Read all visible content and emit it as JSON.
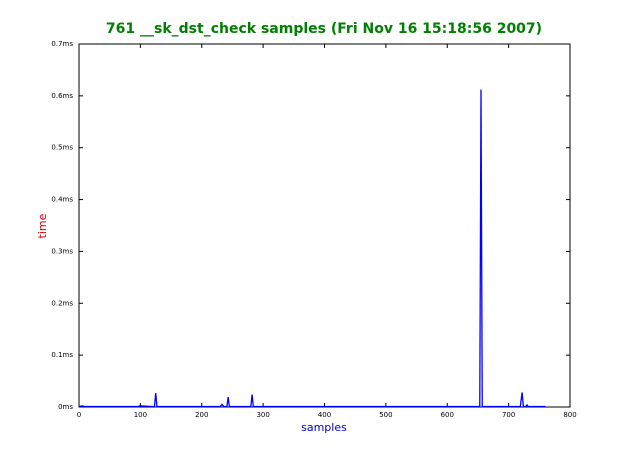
{
  "chart_data": {
    "type": "line",
    "title": "761 __sk_dst_check samples (Fri Nov 16 15:18:56 2007)",
    "x_label": "samples",
    "y_label": "time",
    "x": [
      0,
      5,
      10,
      30,
      60,
      95,
      100,
      120,
      123,
      125,
      127,
      150,
      200,
      230,
      233,
      236,
      241,
      243,
      245,
      260,
      280,
      282,
      284,
      300,
      350,
      400,
      450,
      500,
      550,
      600,
      650,
      653,
      655,
      657,
      660,
      700,
      719,
      722,
      724,
      728,
      730,
      732,
      760
    ],
    "series": [
      {
        "color": "#0000ff",
        "values": [
          0.001,
          0.002,
          0.001,
          0.001,
          0.001,
          0.001,
          0.002,
          0.001,
          0.001,
          0.027,
          0.001,
          0.001,
          0.001,
          0.001,
          0.005,
          0.001,
          0.001,
          0.019,
          0.001,
          0.001,
          0.001,
          0.024,
          0.001,
          0.001,
          0.001,
          0.001,
          0.001,
          0.001,
          0.001,
          0.001,
          0.001,
          0.001,
          0.612,
          0.001,
          0.001,
          0.001,
          0.001,
          0.028,
          0.001,
          0.001,
          0.004,
          0.001,
          0.001
        ]
      }
    ],
    "xlim": [
      0,
      800
    ],
    "xticks": [
      0,
      100,
      200,
      300,
      400,
      500,
      600,
      700,
      800
    ],
    "ylim": [
      0,
      0.7
    ],
    "yticks": [
      {
        "value": 0,
        "label": "0ms"
      },
      {
        "value": 0.1,
        "label": "0.1ms"
      },
      {
        "value": 0.2,
        "label": "0.2ms"
      },
      {
        "value": 0.3,
        "label": "0.3ms"
      },
      {
        "value": 0.4,
        "label": "0.4ms"
      },
      {
        "value": 0.5,
        "label": "0.5ms"
      },
      {
        "value": 0.6,
        "label": "0.6ms"
      },
      {
        "value": 0.7,
        "label": "0.7ms"
      }
    ],
    "title_color": "#008000",
    "x_label_color": "#0000cc",
    "y_label_color": "#cc0000"
  }
}
